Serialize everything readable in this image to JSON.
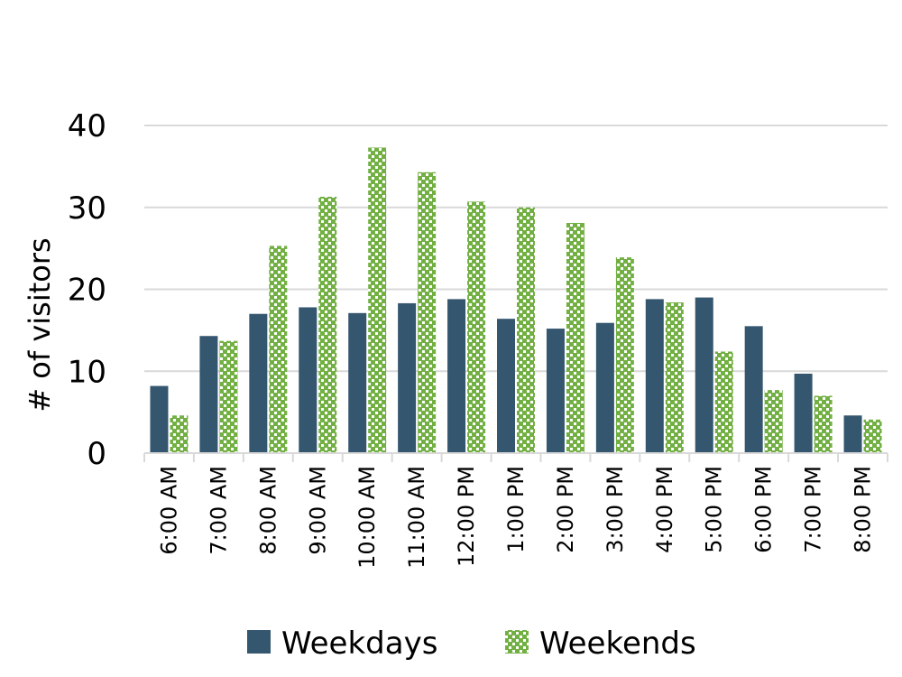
{
  "chart_data": {
    "type": "bar",
    "categories": [
      "6:00 AM",
      "7:00 AM",
      "8:00 AM",
      "9:00 AM",
      "10:00 AM",
      "11:00 AM",
      "12:00 PM",
      "1:00 PM",
      "2:00 PM",
      "3:00 PM",
      "4:00 PM",
      "5:00 PM",
      "6:00 PM",
      "7:00 PM",
      "8:00 PM"
    ],
    "series": [
      {
        "name": "Weekdays",
        "color": "#34566f",
        "pattern": "solid",
        "values": [
          8.2,
          14.3,
          17.0,
          17.8,
          17.1,
          18.3,
          18.8,
          16.4,
          15.2,
          15.9,
          18.8,
          19.0,
          15.5,
          9.7,
          4.6
        ]
      },
      {
        "name": "Weekends",
        "color": "#73b043",
        "pattern": "checkered",
        "values": [
          4.6,
          13.7,
          25.3,
          31.3,
          37.3,
          34.3,
          30.7,
          30.0,
          28.1,
          23.9,
          18.4,
          12.4,
          7.7,
          7.0,
          4.1
        ]
      }
    ],
    "title": "",
    "xlabel": "",
    "ylabel": "# of visitors",
    "ylim": [
      0,
      40
    ],
    "yticks": [
      "0",
      "10",
      "20",
      "30",
      "40"
    ],
    "grid": true,
    "legend_position": "bottom"
  }
}
